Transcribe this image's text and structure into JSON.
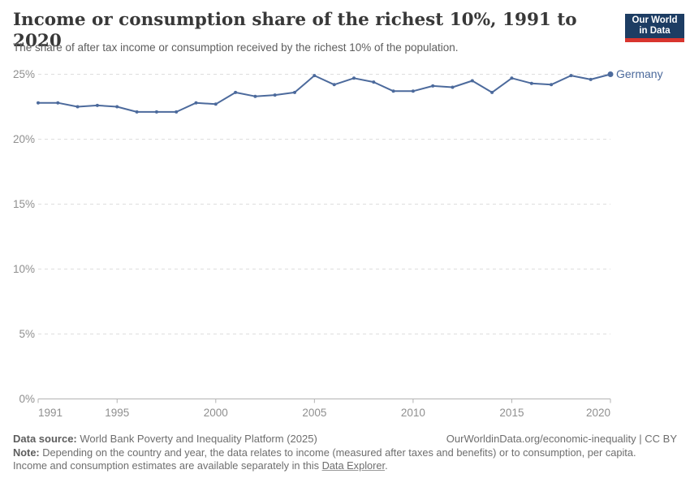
{
  "header": {
    "title": "Income or consumption share of the richest 10%, 1991 to 2020",
    "subtitle": "The share of after tax income or consumption received by the richest 10% of the population.",
    "logo": {
      "line1": "Our World",
      "line2": "in Data",
      "bg_color": "#1d3d63",
      "accent_color": "#d8352e"
    }
  },
  "chart_data": {
    "type": "line",
    "title": "Income or consumption share of the richest 10%, 1991 to 2020",
    "x": [
      1991,
      1992,
      1993,
      1994,
      1995,
      1996,
      1997,
      1998,
      1999,
      2000,
      2001,
      2002,
      2003,
      2004,
      2005,
      2006,
      2007,
      2008,
      2009,
      2010,
      2011,
      2012,
      2013,
      2014,
      2015,
      2016,
      2017,
      2018,
      2019,
      2020
    ],
    "series": [
      {
        "name": "Germany",
        "color": "#4C6A9C",
        "values": [
          22.8,
          22.8,
          22.5,
          22.6,
          22.5,
          22.1,
          22.1,
          22.1,
          22.8,
          22.7,
          23.6,
          23.3,
          23.4,
          23.6,
          24.9,
          24.2,
          24.7,
          24.4,
          23.7,
          23.7,
          24.1,
          24.0,
          24.5,
          23.6,
          24.7,
          24.3,
          24.2,
          24.9,
          24.6,
          25.0
        ]
      }
    ],
    "xlabel": "",
    "ylabel": "",
    "ylim": [
      0,
      25
    ],
    "yticks": [
      {
        "value": 0,
        "label": "0%"
      },
      {
        "value": 5,
        "label": "5%"
      },
      {
        "value": 10,
        "label": "10%"
      },
      {
        "value": 15,
        "label": "15%"
      },
      {
        "value": 20,
        "label": "20%"
      },
      {
        "value": 25,
        "label": "25%"
      }
    ],
    "xticks": [
      {
        "value": 1991,
        "label": "1991"
      },
      {
        "value": 1995,
        "label": "1995"
      },
      {
        "value": 2000,
        "label": "2000"
      },
      {
        "value": 2005,
        "label": "2005"
      },
      {
        "value": 2010,
        "label": "2010"
      },
      {
        "value": 2015,
        "label": "2015"
      },
      {
        "value": 2020,
        "label": "2020"
      }
    ],
    "grid": "horizontal-dashed",
    "legend": "line-end-label",
    "colors": {
      "gridline": "#dedede",
      "axis": "#b3b3b3",
      "tick_label": "#8f8f8f"
    }
  },
  "footer": {
    "datasource_label": "Data source:",
    "datasource_text": " World Bank Poverty and Inequality Platform (2025)",
    "credit": "OurWorldinData.org/economic-inequality | CC BY",
    "note_label": "Note:",
    "note_line1": " Depending on the country and year, the data relates to income (measured after taxes and benefits) or to consumption, per capita.",
    "note_line2_before_link": "Income and consumption estimates are available separately in this ",
    "note_link": "Data Explorer",
    "note_after_link": "."
  }
}
